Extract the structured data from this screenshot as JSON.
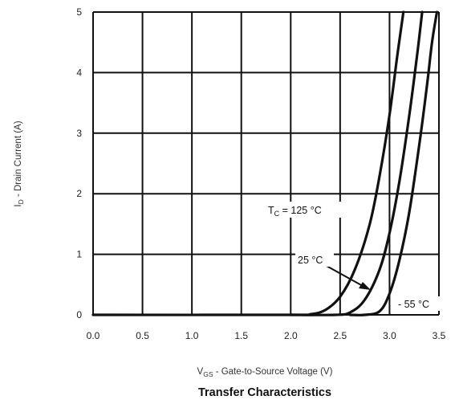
{
  "chart_data": {
    "type": "line",
    "title": "Transfer Characteristics",
    "xlabel": {
      "symbol": "V",
      "sub": "GS",
      "text": " - Gate-to-Source Voltage (V)"
    },
    "ylabel": {
      "symbol": "I",
      "sub": "D",
      "text": " - Drain Current (A)"
    },
    "xlim": [
      0.0,
      3.5
    ],
    "ylim": [
      0,
      5
    ],
    "xticks": [
      "0.0",
      "0.5",
      "1.0",
      "1.5",
      "2.0",
      "2.5",
      "3.0",
      "3.5"
    ],
    "yticks": [
      "0",
      "1",
      "2",
      "3",
      "4",
      "5"
    ],
    "grid": true,
    "series": [
      {
        "name": "T_C = 125 °C",
        "points": [
          [
            0.0,
            0.0
          ],
          [
            2.0,
            0.0
          ],
          [
            2.2,
            0.01
          ],
          [
            2.35,
            0.08
          ],
          [
            2.5,
            0.3
          ],
          [
            2.65,
            0.75
          ],
          [
            2.8,
            1.5
          ],
          [
            2.9,
            2.3
          ],
          [
            3.0,
            3.3
          ],
          [
            3.08,
            4.3
          ],
          [
            3.14,
            5.0
          ]
        ]
      },
      {
        "name": "25 °C",
        "points": [
          [
            2.0,
            0.0
          ],
          [
            2.45,
            0.0
          ],
          [
            2.6,
            0.04
          ],
          [
            2.75,
            0.25
          ],
          [
            2.9,
            0.75
          ],
          [
            3.0,
            1.35
          ],
          [
            3.1,
            2.2
          ],
          [
            3.2,
            3.3
          ],
          [
            3.28,
            4.3
          ],
          [
            3.33,
            5.0
          ]
        ]
      },
      {
        "name": "- 55 °C",
        "points": [
          [
            2.6,
            0.0
          ],
          [
            2.75,
            0.0
          ],
          [
            2.9,
            0.06
          ],
          [
            3.0,
            0.35
          ],
          [
            3.1,
            0.9
          ],
          [
            3.2,
            1.7
          ],
          [
            3.3,
            2.8
          ],
          [
            3.38,
            3.8
          ],
          [
            3.43,
            4.5
          ],
          [
            3.48,
            5.0
          ]
        ]
      }
    ],
    "annotations": {
      "tc_label": {
        "symbol": "T",
        "sub": "C",
        "text": " = 125 °C"
      },
      "label_25": "25 °C",
      "label_m55": "- 55 °C"
    }
  }
}
